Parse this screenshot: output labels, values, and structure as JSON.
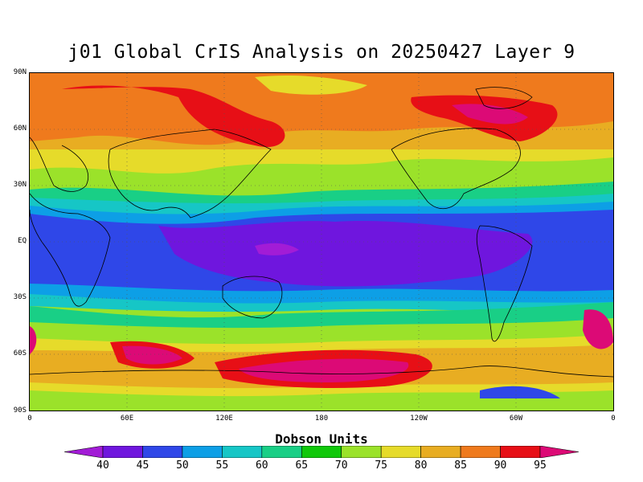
{
  "title": "j01 Global CrIS Analysis on 20250427 Layer 9",
  "colorbar": {
    "units_label": "Dobson Units",
    "levels": [
      "40",
      "45",
      "50",
      "55",
      "60",
      "65",
      "70",
      "75",
      "80",
      "85",
      "90",
      "95"
    ],
    "colors": [
      "#a21cd6",
      "#6f16de",
      "#2f47e8",
      "#0d9fe6",
      "#16c6c6",
      "#19cf86",
      "#10c80a",
      "#9be22a",
      "#e6db2a",
      "#e8ad22",
      "#ef7a1d",
      "#e70f16",
      "#dc0a76"
    ]
  },
  "axes": {
    "lat_labels": [
      "90N",
      "60N",
      "30N",
      "EQ",
      "30S",
      "60S",
      "90S"
    ],
    "lon_labels": [
      "0",
      "60E",
      "120E",
      "180",
      "120W",
      "60W",
      "0"
    ]
  }
}
